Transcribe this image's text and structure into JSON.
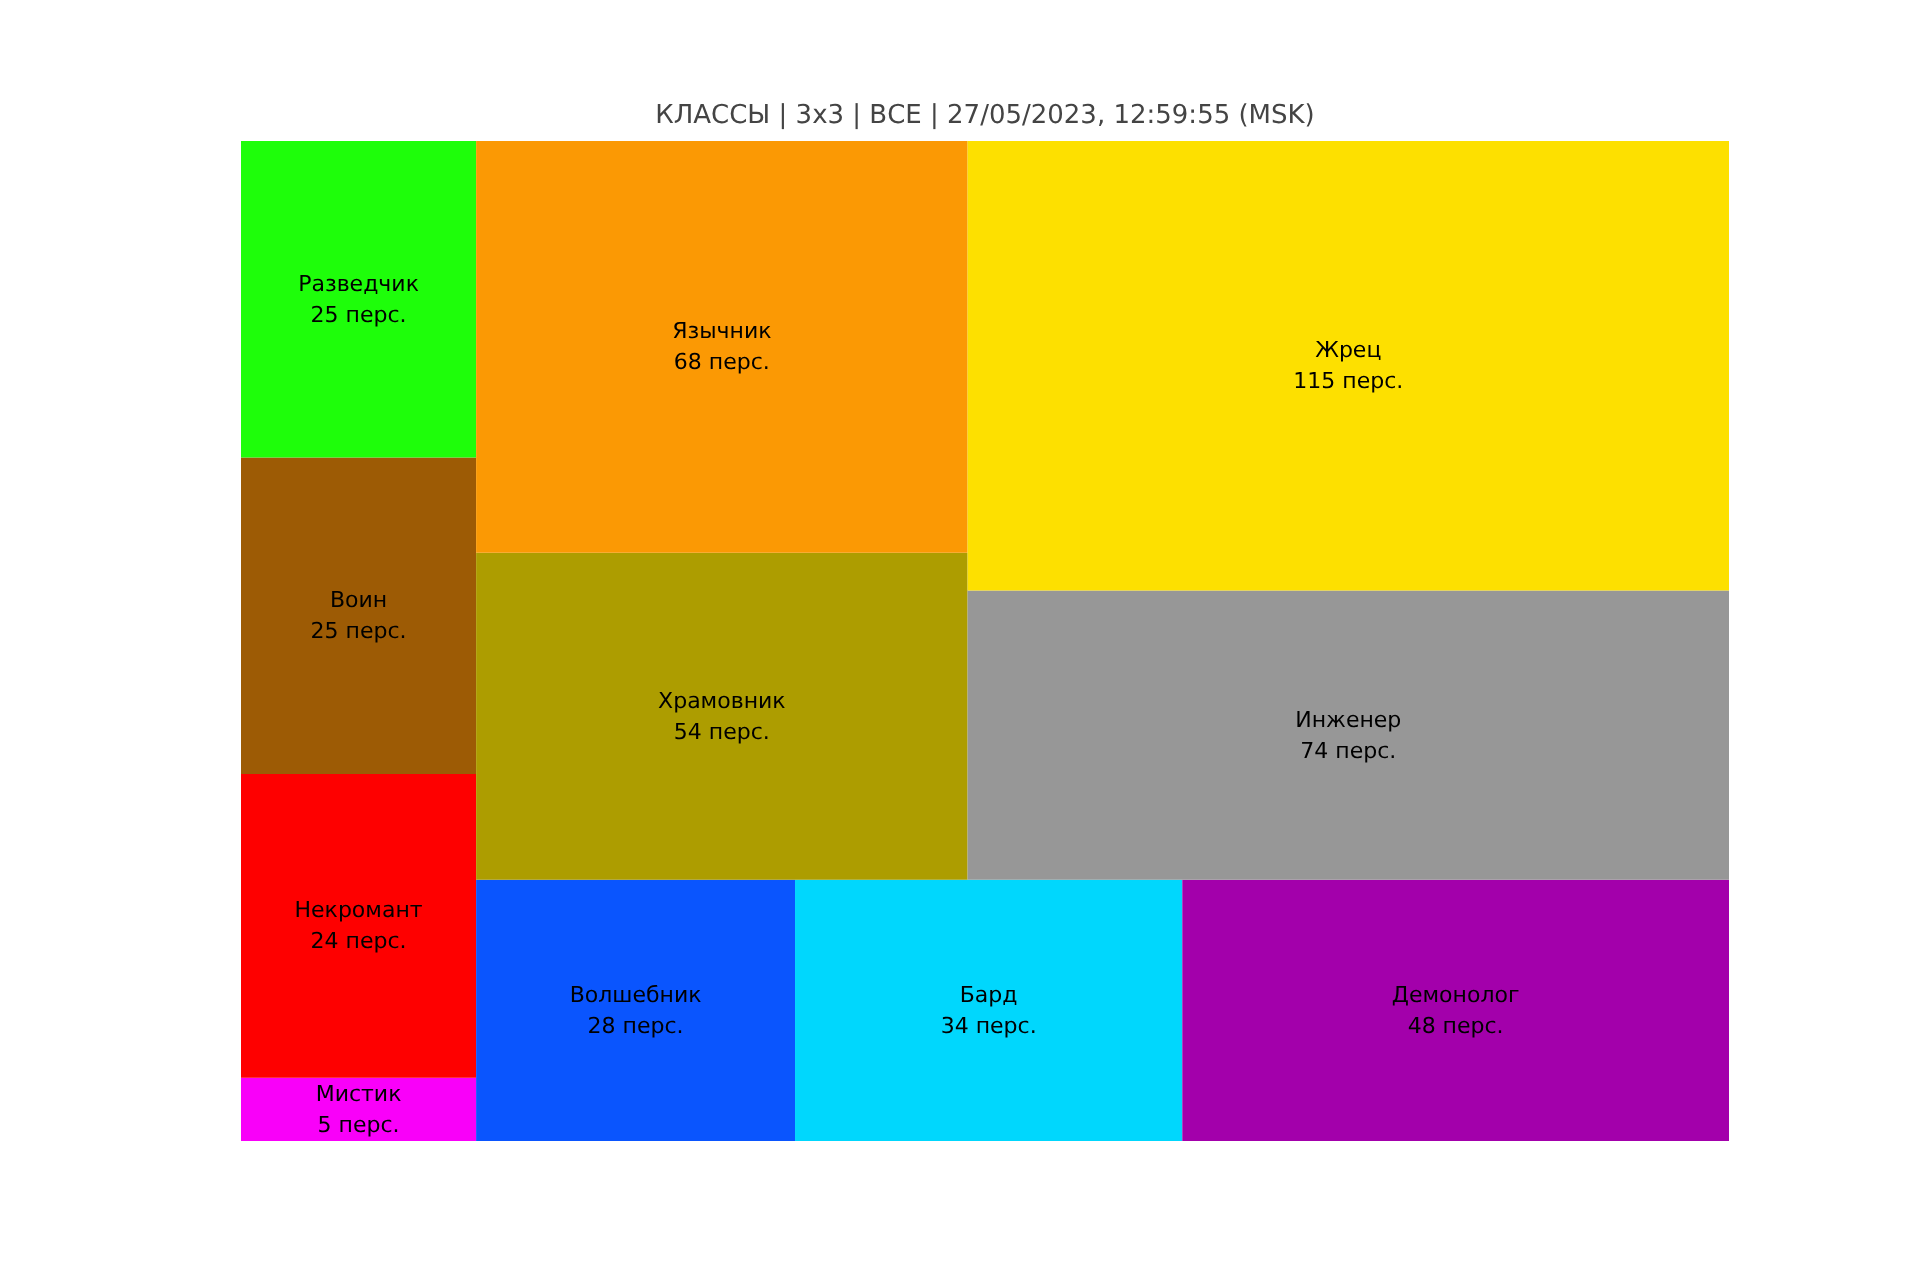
{
  "chart_data": {
    "type": "other",
    "title": "КЛАССЫ | 3x3 | ВСЕ | 27/05/2023, 12:59:55 (MSK)",
    "categories": [
      "Мистик",
      "Некромант",
      "Воин",
      "Разведчик",
      "Волшебник",
      "Бард",
      "Демонолог",
      "Храмовник",
      "Язычник",
      "Инженер",
      "Жрец"
    ],
    "values": [
      5,
      24,
      25,
      25,
      28,
      34,
      48,
      54,
      68,
      74,
      115
    ],
    "value_labels": [
      "5 перс.",
      "24 перс.",
      "25 перс.",
      "25 перс.",
      "28 перс.",
      "34 перс.",
      "48 перс.",
      "54 перс.",
      "68 перс.",
      "74 перс.",
      "115 перс."
    ],
    "colors": [
      "#f900f9",
      "#fe0000",
      "#9d5b05",
      "#1efe0a",
      "#0a55fe",
      "#00d7fd",
      "#a300ab",
      "#ad9d00",
      "#fb9904",
      "#979797",
      "#fde000"
    ]
  }
}
